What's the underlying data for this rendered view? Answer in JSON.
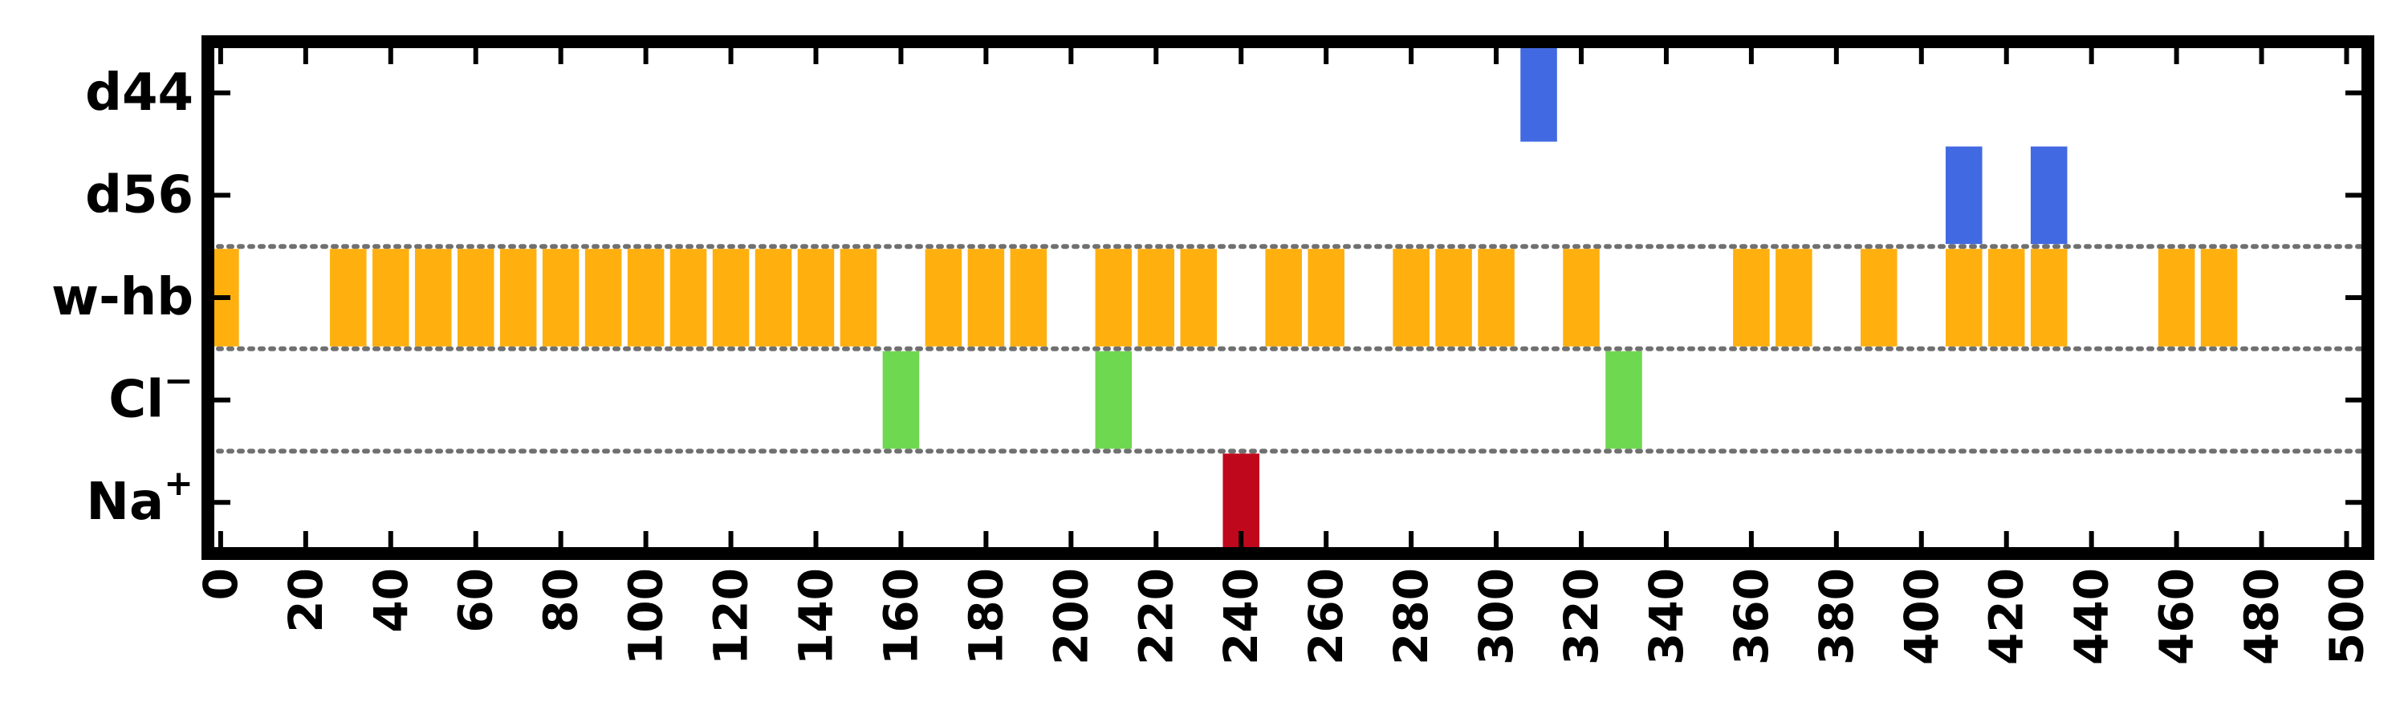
{
  "chart_data": {
    "type": "bar",
    "xlim": [
      -3,
      505
    ],
    "x_ticks": [
      0,
      20,
      40,
      60,
      80,
      100,
      120,
      140,
      160,
      180,
      200,
      220,
      240,
      260,
      280,
      300,
      320,
      340,
      360,
      380,
      400,
      420,
      440,
      460,
      480,
      500
    ],
    "x_tick_labels": [
      "0",
      "20",
      "40",
      "60",
      "80",
      "100",
      "120",
      "140",
      "160",
      "180",
      "200",
      "220",
      "240",
      "260",
      "280",
      "300",
      "320",
      "340",
      "360",
      "380",
      "400",
      "420",
      "440",
      "460",
      "480",
      "500"
    ],
    "bar_width": 8.6,
    "grid": "dotted separators between w-hb, Cl⁻ and Na⁺ rows",
    "rows": [
      {
        "label": "d44",
        "color": "#4169E1",
        "x": [
          310
        ]
      },
      {
        "label": "d56",
        "color": "#4169E1",
        "x": [
          410,
          430
        ]
      },
      {
        "label": "w-hb",
        "color": "#FFB00F",
        "x": [
          0,
          30,
          40,
          50,
          60,
          70,
          80,
          90,
          100,
          110,
          120,
          130,
          140,
          150,
          170,
          180,
          190,
          210,
          220,
          230,
          250,
          260,
          280,
          290,
          300,
          320,
          360,
          370,
          390,
          410,
          420,
          430,
          460,
          470
        ]
      },
      {
        "label": "Cl",
        "label_sup": "−",
        "color": "#6ED850",
        "x": [
          160,
          210,
          330
        ]
      },
      {
        "label": "Na",
        "label_sup": "+",
        "color": "#C0081C",
        "x": [
          240
        ]
      }
    ]
  }
}
